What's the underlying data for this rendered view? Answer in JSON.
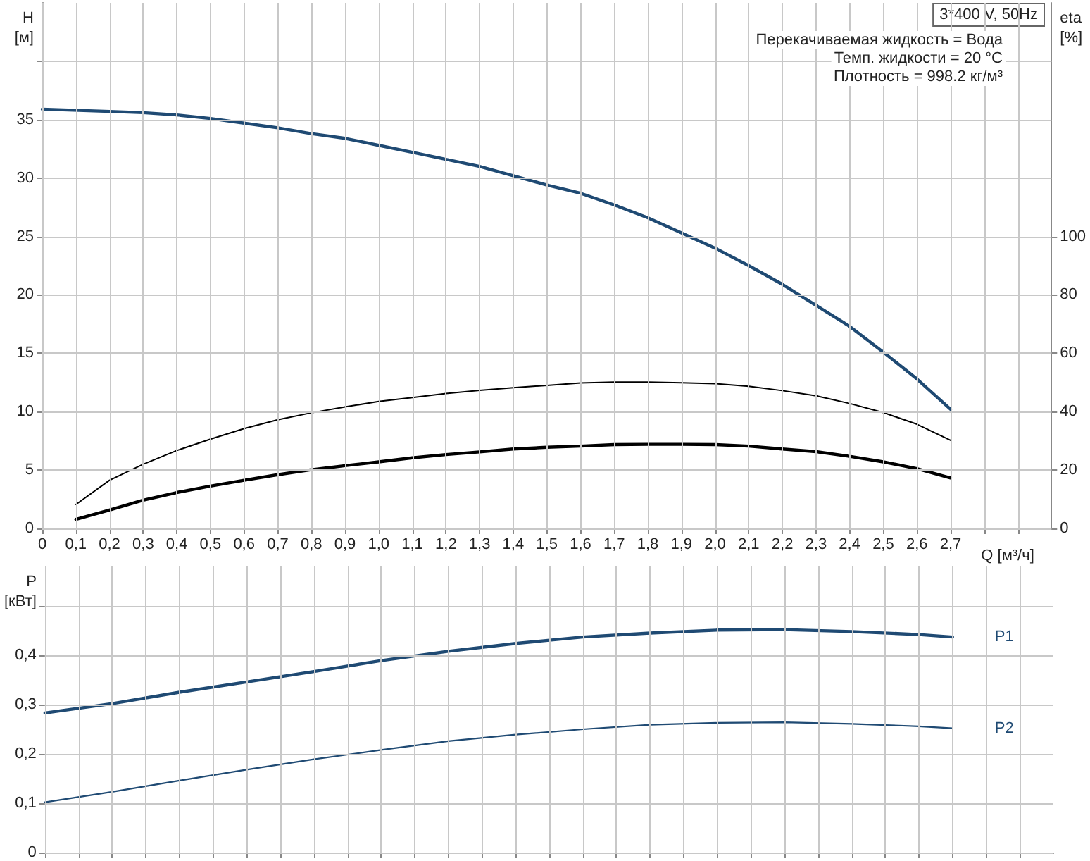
{
  "chart_data": [
    {
      "type": "line",
      "xlabel": "Q [м³/ч]",
      "ylabel": "H\n[м]",
      "y2label": "eta\n[%]",
      "annotations": [
        "3*400 V, 50Hz",
        "Перекачиваемая жидкость = Вода",
        "Темп. жидкости = 20 °C",
        "Плотность = 998.2 кг/м³"
      ],
      "xlim": [
        0,
        3.0
      ],
      "xticks": [
        0,
        {
          "value": 0.1,
          "label": "0,1"
        },
        {
          "value": 0.2,
          "label": "0,2"
        },
        {
          "value": 0.3,
          "label": "0,3"
        },
        {
          "value": 0.4,
          "label": "0,4"
        },
        {
          "value": 0.5,
          "label": "0,5"
        },
        {
          "value": 0.6,
          "label": "0,6"
        },
        {
          "value": 0.7,
          "label": "0,7"
        },
        {
          "value": 0.8,
          "label": "0,8"
        },
        {
          "value": 0.9,
          "label": "0,9"
        },
        {
          "value": 1.0,
          "label": "1,0"
        },
        {
          "value": 1.1,
          "label": "1,1"
        },
        {
          "value": 1.2,
          "label": "1,2"
        },
        {
          "value": 1.3,
          "label": "1,3"
        },
        {
          "value": 1.4,
          "label": "1,4"
        },
        {
          "value": 1.5,
          "label": "1,5"
        },
        {
          "value": 1.6,
          "label": "1,6"
        },
        {
          "value": 1.7,
          "label": "1,7"
        },
        {
          "value": 1.8,
          "label": "1,8"
        },
        {
          "value": 1.9,
          "label": "1,9"
        },
        {
          "value": 2.0,
          "label": "2,0"
        },
        {
          "value": 2.1,
          "label": "2,1"
        },
        {
          "value": 2.2,
          "label": "2,2"
        },
        {
          "value": 2.3,
          "label": "2,3"
        },
        {
          "value": 2.4,
          "label": "2,4"
        },
        {
          "value": 2.5,
          "label": "2,5"
        },
        {
          "value": 2.6,
          "label": "2,6"
        },
        {
          "value": 2.7,
          "label": "2,7"
        },
        {
          "value": 2.8,
          "label": null
        },
        {
          "value": 2.9,
          "label": null
        }
      ],
      "ylim": [
        0,
        45
      ],
      "yticks": [
        0,
        5,
        10,
        15,
        20,
        25,
        30,
        35,
        {
          "value": 40,
          "label": null
        }
      ],
      "y2lim": [
        0,
        180
      ],
      "y2ticks": [
        0,
        20,
        40,
        60,
        80,
        100
      ],
      "grid": true,
      "legend": false,
      "marker": "none",
      "line_style": "solid",
      "series": [
        {
          "color": "#1f4a73",
          "x": [
            0,
            0.2,
            0.3,
            0.4,
            0.5,
            0.6,
            0.7,
            0.8,
            0.9,
            1.0,
            1.1,
            1.2,
            1.3,
            1.4,
            1.5,
            1.6,
            1.7,
            1.8,
            1.9,
            2.0,
            2.1,
            2.2,
            2.3,
            2.4,
            2.5,
            2.6,
            2.7
          ],
          "values": [
            35.9,
            35.7,
            35.6,
            35.4,
            35.1,
            34.7,
            34.3,
            33.8,
            33.4,
            32.8,
            32.2,
            31.6,
            31.0,
            30.2,
            29.4,
            28.7,
            27.7,
            26.6,
            25.3,
            24.0,
            22.5,
            20.9,
            19.1,
            17.3,
            15.1,
            12.8,
            10.2
          ]
        },
        {
          "color": "#000000",
          "axis": "y2",
          "x": [
            0.1,
            0.2,
            0.3,
            0.4,
            0.5,
            0.6,
            0.7,
            0.8,
            0.9,
            1.0,
            1.1,
            1.2,
            1.3,
            1.4,
            1.5,
            1.6,
            1.7,
            1.8,
            1.9,
            2.0,
            2.1,
            2.2,
            2.3,
            2.4,
            2.5,
            2.6,
            2.7
          ],
          "values": [
            8.2,
            16.5,
            22,
            26.7,
            30.6,
            34.2,
            37.2,
            39.6,
            41.6,
            43.5,
            44.8,
            46.2,
            47.3,
            48.2,
            49.0,
            49.8,
            50.1,
            50.1,
            49.9,
            49.6,
            48.7,
            47.2,
            45.4,
            42.8,
            39.7,
            35.7,
            30.2
          ]
        },
        {
          "color": "#000000",
          "axis": "y2",
          "x": [
            0.1,
            0.2,
            0.3,
            0.4,
            0.5,
            0.6,
            0.7,
            0.8,
            0.9,
            1.0,
            1.1,
            1.2,
            1.3,
            1.4,
            1.5,
            1.6,
            1.7,
            1.8,
            1.9,
            2.0,
            2.1,
            2.2,
            2.3,
            2.4,
            2.5,
            2.6,
            2.7
          ],
          "values": [
            3.1,
            6.3,
            9.7,
            12.3,
            14.5,
            16.5,
            18.4,
            20.1,
            21.5,
            22.8,
            24.2,
            25.3,
            26.2,
            27.2,
            27.8,
            28.2,
            28.7,
            28.8,
            28.8,
            28.7,
            28.2,
            27.2,
            26.3,
            24.7,
            22.8,
            20.5,
            17.3
          ]
        }
      ]
    },
    {
      "type": "line",
      "ylabel": "P\n[кВт]",
      "tick_labels": "y",
      "xlim": [
        0,
        3.0
      ],
      "xticks": [
        0,
        0.1,
        0.2,
        0.3,
        0.4,
        0.5,
        0.6,
        0.7,
        0.8,
        0.9,
        1.0,
        1.1,
        1.2,
        1.3,
        1.4,
        1.5,
        1.6,
        1.7,
        1.8,
        1.9,
        2.0,
        2.1,
        2.2,
        2.3,
        2.4,
        2.5,
        2.6,
        2.7,
        2.8,
        2.9
      ],
      "ylim": [
        0,
        0.58
      ],
      "yticks": [
        0,
        {
          "value": 0.1,
          "label": "0,1"
        },
        {
          "value": 0.2,
          "label": "0,2"
        },
        {
          "value": 0.3,
          "label": "0,3"
        },
        {
          "value": 0.4,
          "label": "0,4"
        },
        {
          "value": 0.5,
          "label": null
        }
      ],
      "grid": true,
      "legend": false,
      "marker": "none",
      "line_style": "solid",
      "series": [
        {
          "name": "P1",
          "color": "#1f4a73",
          "x": [
            0,
            0.2,
            0.4,
            0.6,
            0.8,
            1.0,
            1.2,
            1.4,
            1.6,
            1.8,
            2.0,
            2.2,
            2.4,
            2.6,
            2.7
          ],
          "values": [
            0.283,
            0.302,
            0.325,
            0.346,
            0.367,
            0.389,
            0.408,
            0.424,
            0.437,
            0.445,
            0.451,
            0.452,
            0.448,
            0.442,
            0.437
          ]
        },
        {
          "name": "P2",
          "color": "#1f4a73",
          "x": [
            0,
            0.2,
            0.4,
            0.6,
            0.8,
            1.0,
            1.2,
            1.4,
            1.6,
            1.8,
            2.0,
            2.2,
            2.4,
            2.6,
            2.7
          ],
          "values": [
            0.102,
            0.123,
            0.146,
            0.168,
            0.189,
            0.208,
            0.226,
            0.239,
            0.25,
            0.259,
            0.263,
            0.264,
            0.261,
            0.256,
            0.252
          ]
        }
      ]
    }
  ]
}
